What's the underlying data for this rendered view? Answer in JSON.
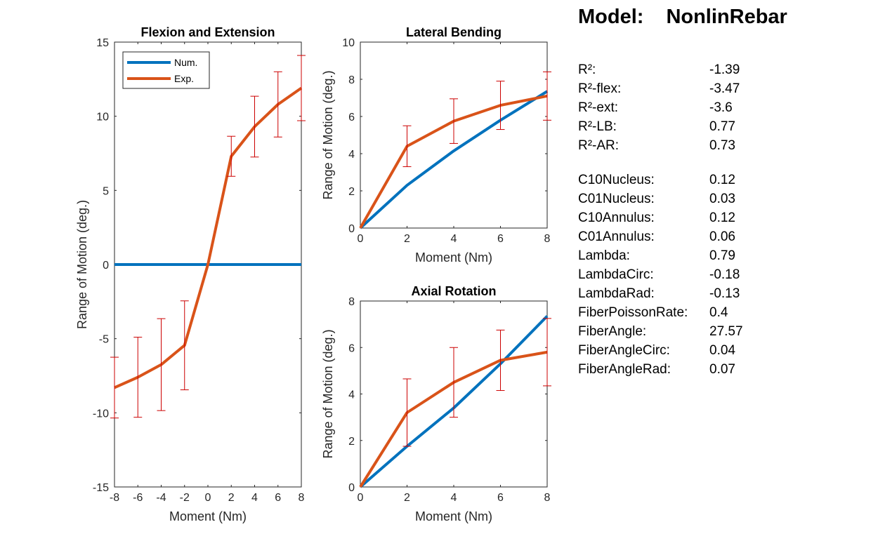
{
  "header": {
    "model_label": "Model:",
    "model_value": "NonlinRebar"
  },
  "params": [
    {
      "name": "R²:",
      "value": "-1.39"
    },
    {
      "name": "R²-flex:",
      "value": "-3.47"
    },
    {
      "name": "R²-ext:",
      "value": "-3.6"
    },
    {
      "name": "R²-LB:",
      "value": "0.77"
    },
    {
      "name": "R²-AR:",
      "value": "0.73"
    },
    {
      "name": "C10Nucleus:",
      "value": "0.12"
    },
    {
      "name": "C01Nucleus:",
      "value": "0.03"
    },
    {
      "name": "C10Annulus:",
      "value": "0.12"
    },
    {
      "name": "C01Annulus:",
      "value": "0.06"
    },
    {
      "name": "Lambda:",
      "value": "0.79"
    },
    {
      "name": "LambdaCirc:",
      "value": "-0.18"
    },
    {
      "name": "LambdaRad:",
      "value": "-0.13"
    },
    {
      "name": "FiberPoissonRate:",
      "value": "0.4"
    },
    {
      "name": "FiberAngle:",
      "value": "27.57"
    },
    {
      "name": "FiberAngleCirc:",
      "value": "0.04"
    },
    {
      "name": "FiberAngleRad:",
      "value": "0.07"
    }
  ],
  "colors": {
    "num": "#0072BD",
    "exp": "#D95319",
    "error_bar": "#CC0000",
    "axis": "#262626"
  },
  "chart_data": [
    {
      "type": "line",
      "title": "Flexion and Extension",
      "xlabel": "Moment (Nm)",
      "ylabel": "Range of Motion (deg.)",
      "xlim": [
        -8,
        8
      ],
      "ylim": [
        -15,
        15
      ],
      "xticks": [
        -8,
        -6,
        -4,
        -2,
        0,
        2,
        4,
        6,
        8
      ],
      "yticks": [
        -15,
        -10,
        -5,
        0,
        5,
        10,
        15
      ],
      "legend": {
        "position": "top-left",
        "entries": [
          "Num.",
          "Exp."
        ]
      },
      "x": [
        -8,
        -6,
        -4,
        -2,
        0,
        2,
        4,
        6,
        8
      ],
      "series": [
        {
          "name": "Num.",
          "color": "#0072BD",
          "values": [
            0,
            0,
            0,
            0,
            0,
            0,
            0,
            0,
            0
          ]
        },
        {
          "name": "Exp.",
          "color": "#D95319",
          "values": [
            -8.3,
            -7.6,
            -6.75,
            -5.45,
            0,
            7.3,
            9.3,
            10.8,
            11.9
          ],
          "error": [
            2.05,
            2.7,
            3.1,
            3.0,
            0,
            1.35,
            2.05,
            2.2,
            2.2
          ]
        }
      ]
    },
    {
      "type": "line",
      "title": "Lateral Bending",
      "xlabel": "Moment (Nm)",
      "ylabel": "Range of Motion (deg.)",
      "xlim": [
        0,
        8
      ],
      "ylim": [
        0,
        10
      ],
      "xticks": [
        0,
        2,
        4,
        6,
        8
      ],
      "yticks": [
        0,
        2,
        4,
        6,
        8,
        10
      ],
      "x": [
        0,
        2,
        4,
        6,
        8
      ],
      "series": [
        {
          "name": "Num.",
          "color": "#0072BD",
          "values": [
            0,
            2.3,
            4.15,
            5.8,
            7.35
          ]
        },
        {
          "name": "Exp.",
          "color": "#D95319",
          "values": [
            0,
            4.4,
            5.75,
            6.6,
            7.1
          ],
          "error": [
            0,
            1.1,
            1.2,
            1.3,
            1.3
          ]
        }
      ]
    },
    {
      "type": "line",
      "title": "Axial Rotation",
      "xlabel": "Moment (Nm)",
      "ylabel": "Range of Motion (deg.)",
      "xlim": [
        0,
        8
      ],
      "ylim": [
        0,
        8
      ],
      "xticks": [
        0,
        2,
        4,
        6,
        8
      ],
      "yticks": [
        0,
        2,
        4,
        6,
        8
      ],
      "x": [
        0,
        2,
        4,
        6,
        8
      ],
      "series": [
        {
          "name": "Num.",
          "color": "#0072BD",
          "values": [
            0,
            1.75,
            3.4,
            5.3,
            7.35
          ]
        },
        {
          "name": "Exp.",
          "color": "#D95319",
          "values": [
            0,
            3.2,
            4.5,
            5.45,
            5.8
          ],
          "error": [
            0,
            1.45,
            1.5,
            1.3,
            1.45
          ]
        }
      ]
    }
  ]
}
